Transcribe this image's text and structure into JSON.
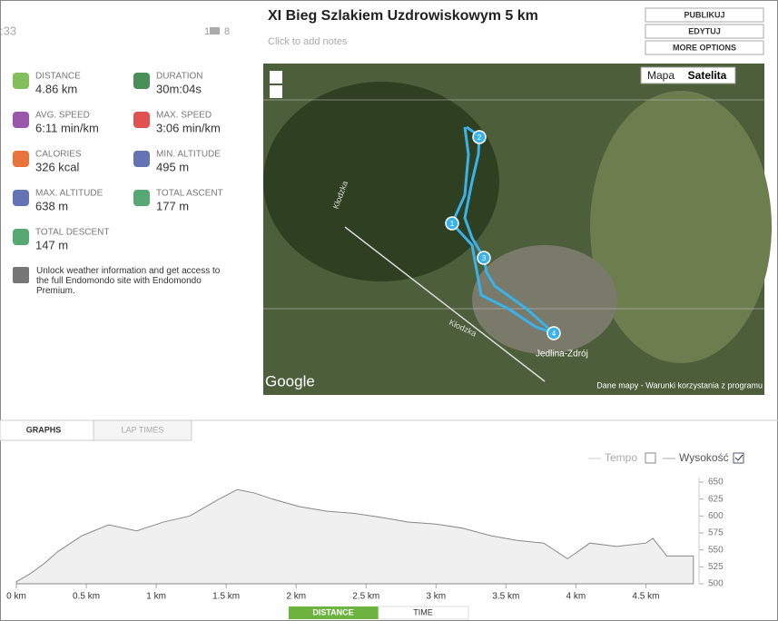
{
  "header": {
    "time": ":33",
    "comments": "1",
    "songs": "8",
    "title": "XI Bieg Szlakiem Uzdrowiskowym 5 km",
    "notes": "Click to add notes",
    "buttons": [
      "PUBLIKUJ",
      "EDYTUJ",
      "MORE OPTIONS"
    ]
  },
  "stats": [
    {
      "label": "DISTANCE",
      "value": "4.86 km"
    },
    {
      "label": "DURATION",
      "value": "30m:04s"
    },
    {
      "label": "AVG. SPEED",
      "value": "6:11 min/km"
    },
    {
      "label": "MAX. SPEED",
      "value": "3:06 min/km"
    },
    {
      "label": "CALORIES",
      "value": "326 kcal"
    },
    {
      "label": "MIN. ALTITUDE",
      "value": "495 m"
    },
    {
      "label": "MAX. ALTITUDE",
      "value": "638 m"
    },
    {
      "label": "TOTAL ASCENT",
      "value": "177 m"
    },
    {
      "label": "TOTAL DESCENT",
      "value": "147 m"
    }
  ],
  "weather": "Unlock weather information and get access to the full Endomondo site with Endomondo Premium.",
  "map": {
    "types": [
      "Mapa",
      "Satelita"
    ],
    "markers": [
      "1",
      "2",
      "3",
      "4"
    ],
    "places": [
      "Jedlina-Zdrój",
      "Kłodzka",
      "Kłodzka"
    ],
    "brand": "Google",
    "terms": "Dane mapy - Warunki korzystania z programu"
  },
  "tabs": [
    "GRAPHS",
    "LAP TIMES"
  ],
  "legend": [
    "Tempo",
    "Wysokość"
  ],
  "toggles": [
    "DISTANCE",
    "TIME"
  ],
  "chart_data": {
    "type": "area",
    "color": "#f0f0f0",
    "x": [
      0,
      0.1,
      0.2,
      0.3,
      0.47,
      0.66,
      0.86,
      1.05,
      1.24,
      1.44,
      1.58,
      1.7,
      1.83,
      2.02,
      2.22,
      2.41,
      2.61,
      2.8,
      3.0,
      3.19,
      3.39,
      3.58,
      3.77,
      3.94,
      4.1,
      4.29,
      4.5,
      4.55,
      4.65,
      4.84
    ],
    "values": [
      503,
      515,
      530,
      548,
      571,
      587,
      578,
      591,
      600,
      624,
      639,
      634,
      625,
      614,
      607,
      604,
      598,
      591,
      588,
      582,
      571,
      564,
      560,
      537,
      560,
      555,
      560,
      567,
      541,
      541
    ],
    "xlim": [
      0,
      4.88
    ],
    "ylim": [
      500,
      650
    ],
    "xticks": [
      {
        "value": 0,
        "label": "0 km"
      },
      {
        "value": 0.5,
        "label": "0.5 km"
      },
      {
        "value": 1,
        "label": "1 km"
      },
      {
        "value": 1.5,
        "label": "1.5 km"
      },
      {
        "value": 2,
        "label": "2 km"
      },
      {
        "value": 2.5,
        "label": "2.5 km"
      },
      {
        "value": 3,
        "label": "3 km"
      },
      {
        "value": 3.5,
        "label": "3.5 km"
      },
      {
        "value": 4,
        "label": "4 km"
      },
      {
        "value": 4.5,
        "label": "4.5 km"
      }
    ],
    "yticks": [
      500,
      525,
      550,
      575,
      600,
      625,
      650
    ]
  }
}
